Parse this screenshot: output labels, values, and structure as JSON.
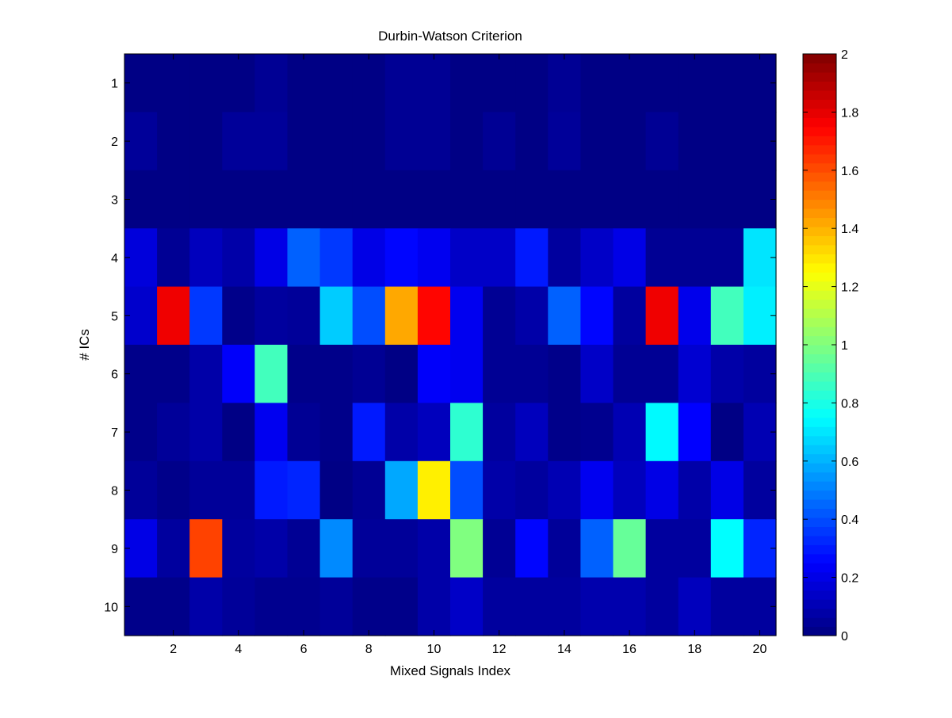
{
  "chart_data": {
    "type": "heatmap",
    "title": "Durbin-Watson Criterion",
    "xlabel": "Mixed Signals Index",
    "ylabel": "# ICs",
    "x_range": [
      0.5,
      20.5
    ],
    "y_range": [
      0.5,
      10.5
    ],
    "x_ticks": [
      2,
      4,
      6,
      8,
      10,
      12,
      14,
      16,
      18,
      20
    ],
    "y_ticks": [
      1,
      2,
      3,
      4,
      5,
      6,
      7,
      8,
      9,
      10
    ],
    "color_range": [
      0,
      2
    ],
    "colorbar_ticks": [
      "0",
      "0.2",
      "0.4",
      "0.6",
      "0.8",
      "1",
      "1.2",
      "1.4",
      "1.6",
      "1.8",
      "2"
    ],
    "colormap": "jet",
    "columns": [
      1,
      2,
      3,
      4,
      5,
      6,
      7,
      8,
      9,
      10,
      11,
      12,
      13,
      14,
      15,
      16,
      17,
      18,
      19,
      20
    ],
    "rows": [
      1,
      2,
      3,
      4,
      5,
      6,
      7,
      8,
      9,
      10
    ],
    "values": [
      [
        0.01,
        0.01,
        0.01,
        0.01,
        0.04,
        0.01,
        0.01,
        0.01,
        0.04,
        0.04,
        0.01,
        0.01,
        0.01,
        0.04,
        0.01,
        0.01,
        0.01,
        0.01,
        0.01,
        0.01
      ],
      [
        0.05,
        0.01,
        0.01,
        0.05,
        0.05,
        0.01,
        0.01,
        0.01,
        0.04,
        0.04,
        0.01,
        0.04,
        0.01,
        0.05,
        0.01,
        0.01,
        0.04,
        0.01,
        0.01,
        0.01
      ],
      [
        0.01,
        0.01,
        0.01,
        0.01,
        0.01,
        0.01,
        0.01,
        0.01,
        0.01,
        0.01,
        0.01,
        0.01,
        0.01,
        0.01,
        0.01,
        0.01,
        0.01,
        0.01,
        0.01,
        0.01
      ],
      [
        0.18,
        0.04,
        0.12,
        0.08,
        0.2,
        0.44,
        0.36,
        0.2,
        0.26,
        0.22,
        0.14,
        0.14,
        0.3,
        0.06,
        0.14,
        0.2,
        0.04,
        0.04,
        0.04,
        0.7
      ],
      [
        0.15,
        1.78,
        0.36,
        0.02,
        0.06,
        0.05,
        0.65,
        0.4,
        1.42,
        1.74,
        0.22,
        0.04,
        0.08,
        0.44,
        0.26,
        0.06,
        1.78,
        0.21,
        0.88,
        0.72
      ],
      [
        0.02,
        0.02,
        0.08,
        0.24,
        0.88,
        0.02,
        0.02,
        0.04,
        0.01,
        0.24,
        0.22,
        0.04,
        0.04,
        0.02,
        0.14,
        0.04,
        0.04,
        0.16,
        0.08,
        0.06
      ],
      [
        0.02,
        0.05,
        0.08,
        0.01,
        0.22,
        0.04,
        0.02,
        0.3,
        0.08,
        0.12,
        0.84,
        0.06,
        0.12,
        0.02,
        0.03,
        0.1,
        0.74,
        0.25,
        0.01,
        0.1
      ],
      [
        0.05,
        0.02,
        0.05,
        0.05,
        0.3,
        0.32,
        0.01,
        0.04,
        0.58,
        1.28,
        0.4,
        0.08,
        0.06,
        0.1,
        0.22,
        0.12,
        0.2,
        0.08,
        0.2,
        0.06
      ],
      [
        0.2,
        0.06,
        1.62,
        0.06,
        0.08,
        0.04,
        0.52,
        0.05,
        0.05,
        0.08,
        1.0,
        0.04,
        0.26,
        0.05,
        0.44,
        0.95,
        0.06,
        0.06,
        0.75,
        0.32
      ],
      [
        0.02,
        0.02,
        0.08,
        0.05,
        0.03,
        0.03,
        0.05,
        0.02,
        0.02,
        0.08,
        0.14,
        0.06,
        0.06,
        0.06,
        0.09,
        0.09,
        0.06,
        0.12,
        0.06,
        0.06
      ]
    ]
  }
}
